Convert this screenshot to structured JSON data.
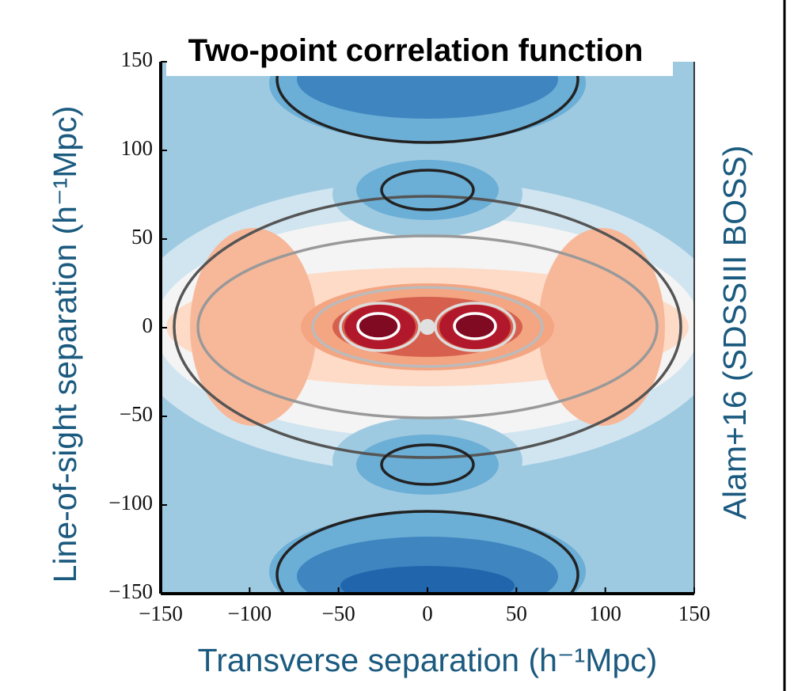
{
  "chart_data": {
    "type": "contour",
    "title": "Two-point correlation function",
    "x_label": "Transverse separation (h⁻¹Mpc)",
    "y_label": "Line-of-sight separation (h⁻¹Mpc)",
    "annotation": "Alam+16 (SDSSIII BOSS)",
    "xlim": [
      -150,
      150
    ],
    "ylim": [
      -150,
      150
    ],
    "xticks": [
      {
        "value": -150,
        "label": "−150"
      },
      {
        "value": -100,
        "label": "−100"
      },
      {
        "value": -50,
        "label": "−50"
      },
      0,
      50,
      100,
      150
    ],
    "yticks": [
      {
        "value": -150,
        "label": "−150"
      },
      {
        "value": -100,
        "label": "−100"
      },
      {
        "value": -50,
        "label": "−50"
      },
      0,
      50,
      100,
      150
    ]
  }
}
